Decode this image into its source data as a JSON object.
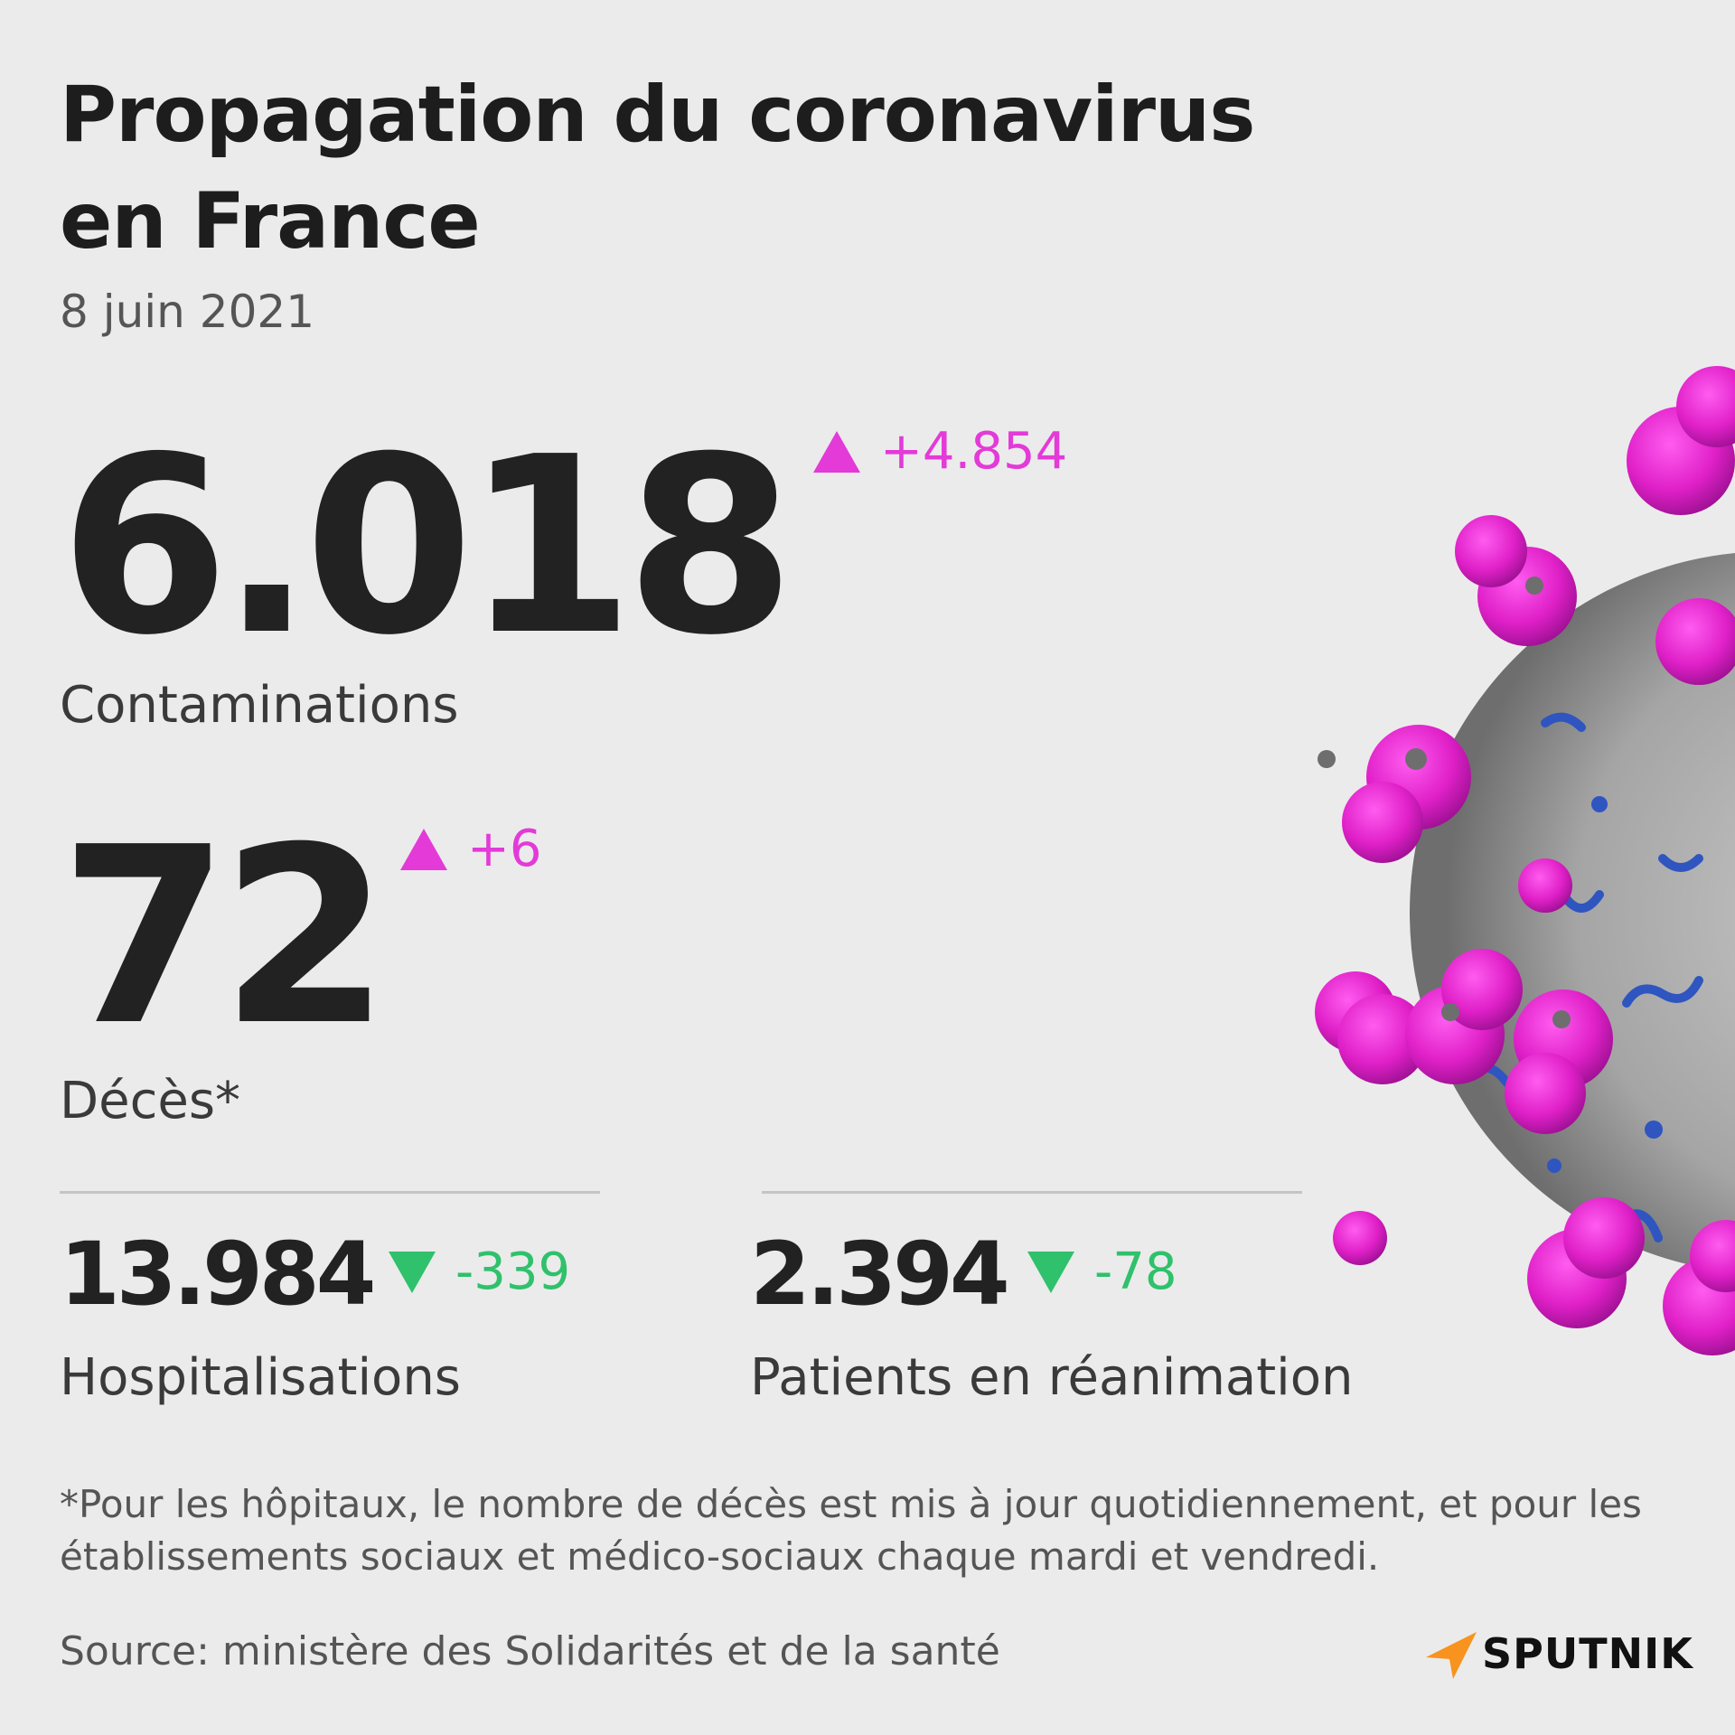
{
  "title": "Propagation du coronavirus en France",
  "date": "8 juin 2021",
  "contaminations": {
    "value": "6.018",
    "delta": "+4.854",
    "label": "Contaminations"
  },
  "deces": {
    "value": "72",
    "delta": "+6",
    "label": "Décès*"
  },
  "hospitalisations": {
    "value": "13.984",
    "delta": "-339",
    "label": "Hospitalisations"
  },
  "reanimation": {
    "value": "2.394",
    "delta": "-78",
    "label": "Patients en réanimation"
  },
  "footnote": "*Pour les hôpitaux, le nombre de décès est mis à jour quotidiennement, et pour les établissements sociaux et médico-sociaux chaque mardi et vendredi.",
  "source": "Source: ministère des Solidarités et de la santé",
  "brand": "SPUTNIK",
  "colors": {
    "increase": "#e33ad8",
    "decrease": "#2fc16b",
    "virus_spike": "#e020c8",
    "virus_body": "#a9a9a9",
    "brand_accent": "#f7931e"
  },
  "icons": {
    "increase": "triangle-up-icon",
    "decrease": "triangle-down-icon"
  }
}
